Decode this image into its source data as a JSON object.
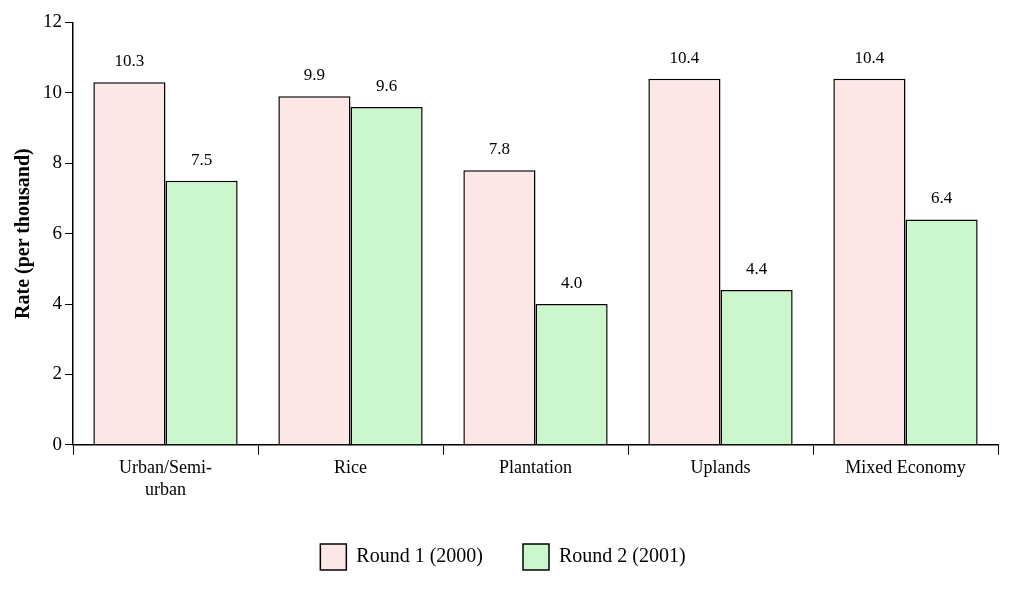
{
  "chart_data": {
    "type": "bar",
    "ylabel": "Rate (per thousand)",
    "categories": [
      "Urban/Semi-urban",
      "Rice",
      "Plantation",
      "Uplands",
      "Mixed Economy"
    ],
    "series": [
      {
        "name": "Round 1 (2000)",
        "color": "#fde6e6",
        "values": [
          10.3,
          9.9,
          7.8,
          10.4,
          10.4
        ],
        "value_labels": [
          "10.3",
          "9.9",
          "7.8",
          "10.4",
          "10.4"
        ]
      },
      {
        "name": "Round 2 (2001)",
        "color": "#ccf7cc",
        "values": [
          7.5,
          9.6,
          4.0,
          4.4,
          6.4
        ],
        "value_labels": [
          "7.5",
          "9.6",
          "4.0",
          "4.4",
          "6.4"
        ]
      }
    ],
    "ylim": [
      0,
      12
    ],
    "yticks": [
      0,
      2,
      4,
      6,
      8,
      10,
      12
    ],
    "grid": false,
    "legend": "bottom"
  }
}
